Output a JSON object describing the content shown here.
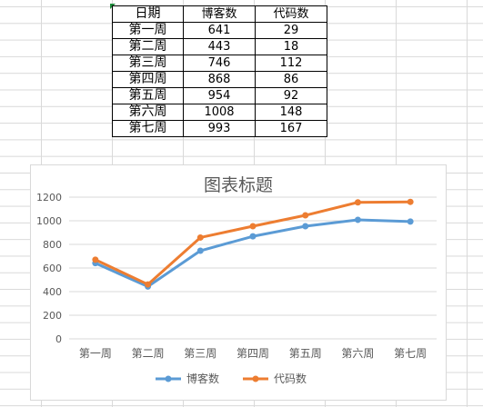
{
  "table": {
    "headers": [
      "日期",
      "博客数",
      "代码数"
    ],
    "rows": [
      [
        "第一周",
        "641",
        "29"
      ],
      [
        "第二周",
        "443",
        "18"
      ],
      [
        "第三周",
        "746",
        "112"
      ],
      [
        "第四周",
        "868",
        "86"
      ],
      [
        "第五周",
        "954",
        "92"
      ],
      [
        "第六周",
        "1008",
        "148"
      ],
      [
        "第七周",
        "993",
        "167"
      ]
    ]
  },
  "chart_data": {
    "type": "line",
    "stacked": true,
    "title": "图表标题",
    "categories": [
      "第一周",
      "第二周",
      "第三周",
      "第四周",
      "第五周",
      "第六周",
      "第七周"
    ],
    "series": [
      {
        "name": "博客数",
        "color": "#5b9bd5",
        "values": [
          641,
          443,
          746,
          868,
          954,
          1008,
          993
        ]
      },
      {
        "name": "代码数",
        "color": "#ed7d31",
        "values": [
          29,
          18,
          112,
          86,
          92,
          148,
          167
        ]
      }
    ],
    "ylim": [
      0,
      1200
    ],
    "yticks": [
      "0",
      "200",
      "400",
      "600",
      "800",
      "1000",
      "1200"
    ],
    "grid": true,
    "legend": "bottom"
  },
  "colors": {
    "title": "#595959",
    "grid": "#d9d9d9",
    "axis_text": "#595959"
  }
}
